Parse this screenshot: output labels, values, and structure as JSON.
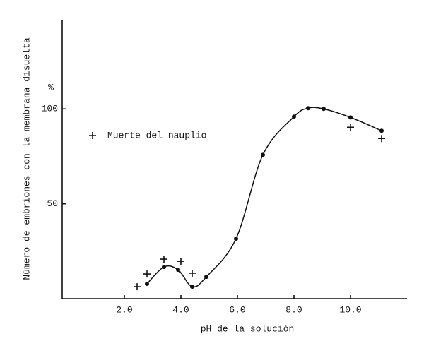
{
  "chart_data": {
    "type": "line",
    "x_label": "pH de la solución",
    "y_label": "Número de embriones con la membrana disuelta",
    "y_unit": "%",
    "xlim": [
      -0.2,
      12
    ],
    "ylim": [
      0,
      147
    ],
    "xticks": [
      {
        "value": 2,
        "label": "2.0"
      },
      {
        "value": 4,
        "label": "4.0"
      },
      {
        "value": 6,
        "label": "6.0"
      },
      {
        "value": 8,
        "label": "8.0"
      },
      {
        "value": 10,
        "label": "10.0"
      }
    ],
    "yticks": [
      50,
      100
    ],
    "grid": false,
    "legend": "upper left",
    "series": [
      {
        "color": "#111111",
        "marker": "dot",
        "smooth": true,
        "x": [
          2.8,
          3.4,
          3.9,
          4.4,
          4.9,
          5.95,
          6.9,
          8.0,
          8.5,
          9.05,
          10.0,
          11.1
        ],
        "values": [
          7.8,
          16.7,
          15.2,
          6.3,
          11.5,
          31.6,
          75.8,
          95.9,
          100.4,
          100,
          95.5,
          88.5
        ]
      },
      {
        "name": "Muerte del nauplio",
        "color": "#111111",
        "marker": "plus",
        "x": [
          2.45,
          2.8,
          3.4,
          4.0,
          4.4,
          10.0,
          11.1
        ],
        "values": [
          6.3,
          13,
          20.8,
          19.7,
          13.4,
          90.3,
          84.4
        ]
      }
    ]
  }
}
